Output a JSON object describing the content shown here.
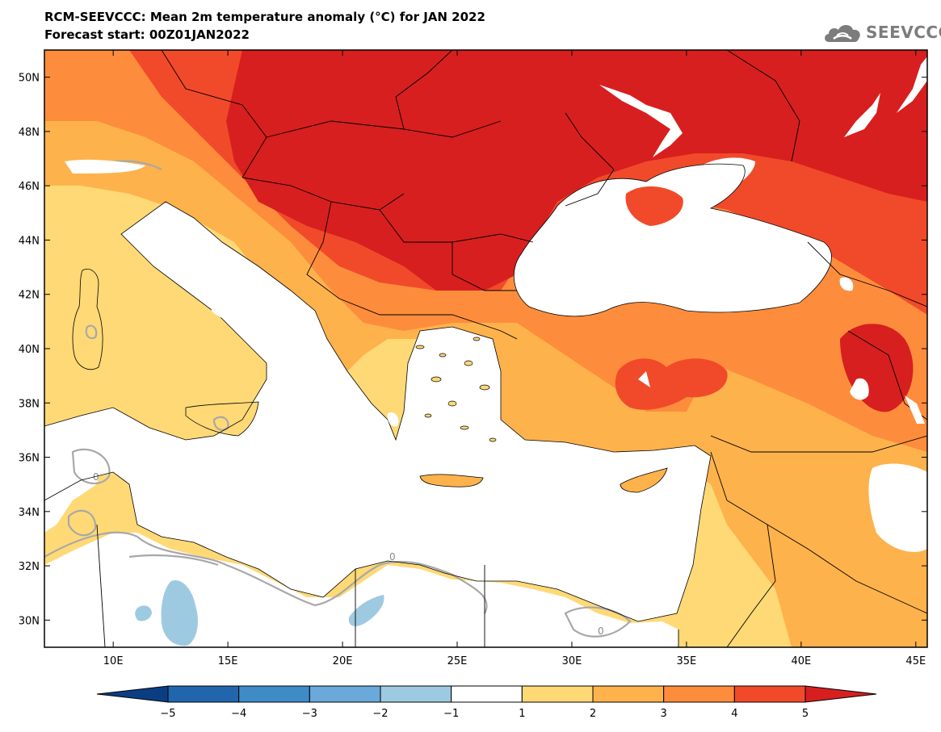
{
  "header": {
    "title": "RCM-SEEVCCC: Mean 2m temperature anomaly (°C) for JAN 2022",
    "subtitle": "Forecast start: 00Z01JAN2022"
  },
  "logo": {
    "text": "SEEVCCC",
    "icon": "cloud-icon"
  },
  "map": {
    "lat_ticks": [
      "50N",
      "48N",
      "46N",
      "44N",
      "42N",
      "40N",
      "38N",
      "36N",
      "34N",
      "32N",
      "30N"
    ],
    "lat_values": [
      50,
      48,
      46,
      44,
      42,
      40,
      38,
      36,
      34,
      32,
      30
    ],
    "lon_ticks": [
      "10E",
      "15E",
      "20E",
      "25E",
      "30E",
      "35E",
      "40E",
      "45E"
    ],
    "lon_values": [
      10,
      15,
      20,
      25,
      30,
      35,
      40,
      45
    ],
    "lon_range": [
      7,
      45.5
    ],
    "lat_range": [
      29,
      51
    ],
    "contour_label": "0"
  },
  "colorbar": {
    "tick_labels": [
      "−5",
      "−4",
      "−3",
      "−2",
      "−1",
      "1",
      "2",
      "3",
      "4",
      "5"
    ],
    "bins": [
      {
        "range": "< −5",
        "color": "#0b3d82"
      },
      {
        "range": "−5 to −4",
        "color": "#2166ac"
      },
      {
        "range": "−4 to −3",
        "color": "#3f8bc8"
      },
      {
        "range": "−3 to −2",
        "color": "#6aa9d9"
      },
      {
        "range": "−2 to −1",
        "color": "#9ecae1"
      },
      {
        "range": "−1 to 1",
        "color": "#ffffff"
      },
      {
        "range": "1 to 2",
        "color": "#fed976"
      },
      {
        "range": "2 to 3",
        "color": "#feb24c"
      },
      {
        "range": "3 to 4",
        "color": "#fd8d3c"
      },
      {
        "range": "4 to 5",
        "color": "#f14a2a"
      },
      {
        "range": "> 5",
        "color": "#d71f1f"
      }
    ]
  },
  "colors": {
    "sea": "#ffffff",
    "zero_contour": "#a8a8a8",
    "border": "#000000"
  }
}
